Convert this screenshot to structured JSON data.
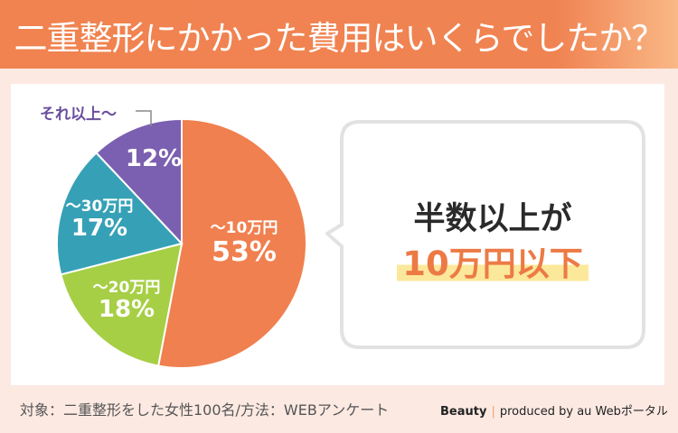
{
  "header": {
    "title": "二重整形にかかった費用はいくらでしたか？"
  },
  "chart_data": {
    "type": "pie",
    "title": "二重整形にかかった費用はいくらでしたか？",
    "categories": [
      "〜10万円",
      "〜20万円",
      "〜30万円",
      "それ以上〜"
    ],
    "values": [
      53,
      18,
      17,
      12
    ],
    "labels": [
      "53%",
      "18%",
      "17%",
      "12%"
    ],
    "colors": [
      "#f0804f",
      "#a6cf46",
      "#36a1b6",
      "#7b5fb0"
    ],
    "start": "top",
    "direction": "clockwise"
  },
  "callout": {
    "line1": "半数以上が",
    "line2": "10万円以下"
  },
  "footer": {
    "note": "対象：二重整形をした女性100名/方法：WEBアンケート",
    "brand": "Beauty",
    "credit": "produced by au Webポータル"
  }
}
